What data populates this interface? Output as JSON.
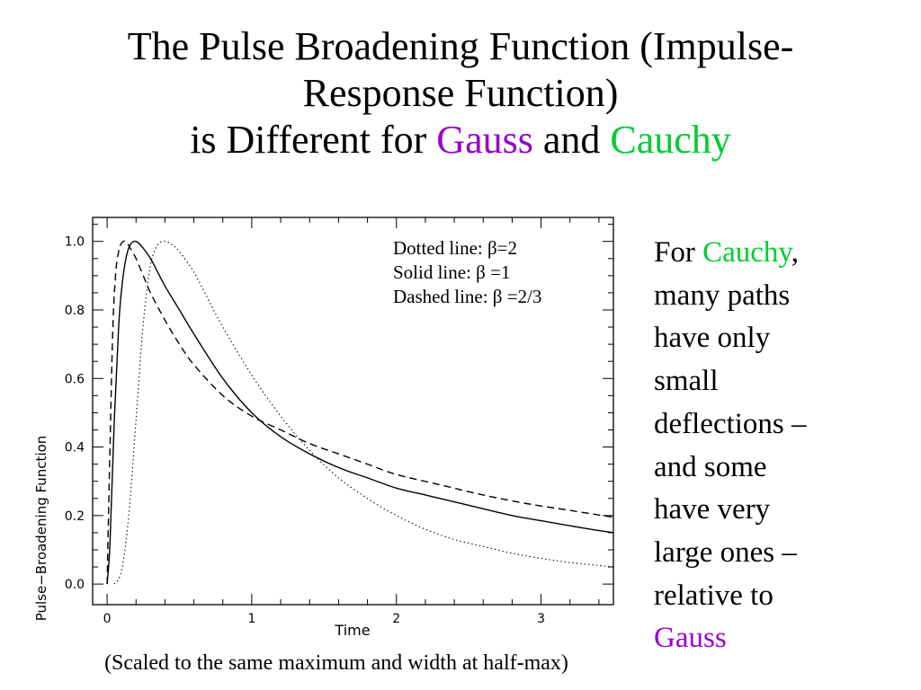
{
  "title": {
    "line1": "The Pulse Broadening Function (Impulse-",
    "line2": "Response Function)",
    "line3_prefix": "is Different for ",
    "gauss": "Gauss",
    "and": " and ",
    "cauchy": "Cauchy"
  },
  "colors": {
    "gauss": "#9900cc",
    "cauchy": "#00cc33",
    "text": "#000000"
  },
  "legend_notes": {
    "dotted": "Dotted line: β=2",
    "solid": "Solid line: β =1",
    "dashed": "Dashed line: β =2/3"
  },
  "side_note": {
    "for": "For ",
    "cauchy": "Cauchy",
    "comma": ",",
    "lines": [
      "many paths",
      "have only",
      "small",
      "deflections –",
      "and some",
      "have very",
      "large ones –",
      "relative to"
    ],
    "gauss": "Gauss"
  },
  "caption": "(Scaled to the same maximum and width at half-max)",
  "chart_data": {
    "type": "line",
    "xlabel": "Time",
    "ylabel": "Pulse−Broadening Function",
    "xlim": [
      -0.1,
      3.5
    ],
    "ylim": [
      -0.06,
      1.07
    ],
    "xticks": [
      0,
      1,
      2,
      3
    ],
    "xtick_labels": [
      "0",
      "1",
      "2",
      "3"
    ],
    "yticks": [
      0.0,
      0.2,
      0.4,
      0.6,
      0.8,
      1.0
    ],
    "ytick_labels": [
      "0.0",
      "0.2",
      "0.4",
      "0.6",
      "0.8",
      "1.0"
    ],
    "grid": false,
    "series": [
      {
        "style": "dotted",
        "x": [
          0.05,
          0.1,
          0.15,
          0.2,
          0.25,
          0.3,
          0.35,
          0.4,
          0.45,
          0.5,
          0.6,
          0.7,
          0.8,
          1.0,
          1.2,
          1.4,
          1.6,
          1.8,
          2.0,
          2.2,
          2.4,
          2.6,
          2.8,
          3.0,
          3.2,
          3.5
        ],
        "y": [
          0.0,
          0.04,
          0.2,
          0.48,
          0.76,
          0.93,
          0.99,
          1.0,
          0.99,
          0.97,
          0.91,
          0.83,
          0.75,
          0.61,
          0.49,
          0.39,
          0.31,
          0.25,
          0.2,
          0.16,
          0.13,
          0.11,
          0.09,
          0.075,
          0.063,
          0.05
        ]
      },
      {
        "style": "solid",
        "x": [
          0.0,
          0.02,
          0.05,
          0.08,
          0.1,
          0.13,
          0.16,
          0.2,
          0.25,
          0.3,
          0.35,
          0.4,
          0.5,
          0.6,
          0.8,
          1.0,
          1.2,
          1.4,
          1.6,
          1.8,
          2.0,
          2.2,
          2.5,
          2.8,
          3.0,
          3.3,
          3.5
        ],
        "y": [
          0.0,
          0.12,
          0.48,
          0.75,
          0.86,
          0.95,
          0.99,
          1.0,
          0.98,
          0.95,
          0.91,
          0.87,
          0.8,
          0.73,
          0.6,
          0.5,
          0.43,
          0.38,
          0.34,
          0.31,
          0.28,
          0.26,
          0.23,
          0.2,
          0.185,
          0.163,
          0.15
        ]
      },
      {
        "style": "dashed",
        "x": [
          0.0,
          0.02,
          0.04,
          0.06,
          0.08,
          0.1,
          0.13,
          0.16,
          0.2,
          0.25,
          0.3,
          0.4,
          0.5,
          0.6,
          0.8,
          1.0,
          1.2,
          1.4,
          1.6,
          1.8,
          2.0,
          2.3,
          2.6,
          2.9,
          3.2,
          3.5
        ],
        "y": [
          0.0,
          0.4,
          0.75,
          0.91,
          0.97,
          0.995,
          1.0,
          0.98,
          0.95,
          0.9,
          0.85,
          0.77,
          0.7,
          0.64,
          0.55,
          0.49,
          0.45,
          0.41,
          0.38,
          0.35,
          0.32,
          0.29,
          0.26,
          0.235,
          0.215,
          0.195
        ]
      }
    ]
  }
}
